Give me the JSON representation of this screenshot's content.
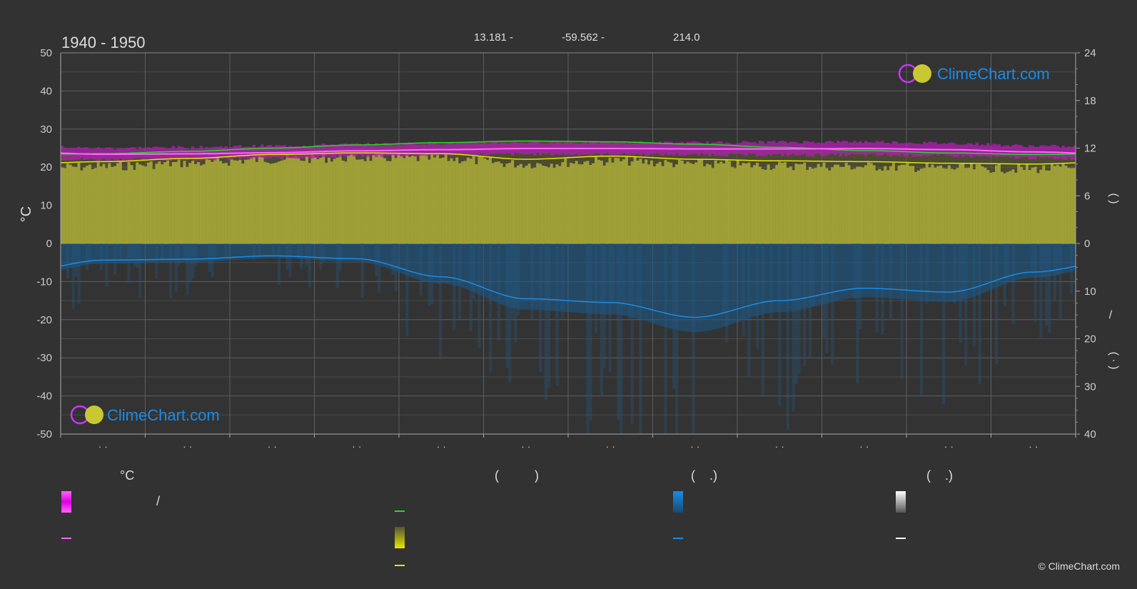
{
  "header": {
    "period": "1940 - 1950",
    "lat": "13.181 -",
    "lon": "-59.562 -",
    "elev": "214.0"
  },
  "branding": {
    "logo_text": "ClimeChart.com",
    "copyright": "© ClimeChart.com"
  },
  "legend": {
    "col1_head": "°C",
    "col1_item1_sep": "/",
    "col2_head": "(          )",
    "col3_head": "(    .)",
    "col4_head": "(    .)"
  },
  "colors": {
    "temp_band": "#ff00ff",
    "mean_temp": "#ff66ff",
    "daylight": "#22dd22",
    "sunshine": "#e6e600",
    "precip": "#1a8ce6",
    "snow": "#ffffff",
    "grid": "#777777",
    "bg": "#323232"
  },
  "chart_data": {
    "type": "line",
    "months": 12,
    "x_ticks": [
      "· ·",
      "· ·",
      "· ·",
      "· ·",
      "· ·",
      "· ·",
      "· ·",
      "· ·",
      "· ·",
      "· ·",
      "· ·",
      "· ·"
    ],
    "y_left": {
      "label": "°C",
      "ylim": [
        -50,
        50
      ],
      "ticks": [
        50,
        40,
        30,
        20,
        10,
        0,
        -10,
        -20,
        -30,
        -40,
        -50
      ]
    },
    "y_right_top": {
      "ylim": [
        0,
        24
      ],
      "ticks": [
        24,
        18,
        12,
        6,
        0
      ],
      "label": "(        )"
    },
    "y_right_bottom": {
      "ylim": [
        0,
        40
      ],
      "ticks": [
        0,
        10,
        20,
        30,
        40
      ],
      "label": "/",
      "label2": "(  ·  )"
    },
    "series": [
      {
        "key": "daylight",
        "axis": "hours",
        "values": [
          11.3,
          11.6,
          12.0,
          12.4,
          12.7,
          12.9,
          12.8,
          12.5,
          12.1,
          11.7,
          11.4,
          11.2
        ]
      },
      {
        "key": "sunshine",
        "axis": "hours",
        "values": [
          10.3,
          10.7,
          11.2,
          11.4,
          11.3,
          10.6,
          11.0,
          10.6,
          10.4,
          10.3,
          10.1,
          10.0
        ]
      },
      {
        "key": "mean_temp",
        "axis": "temp",
        "values": [
          23.4,
          23.5,
          23.8,
          24.3,
          24.6,
          24.9,
          24.9,
          24.8,
          24.8,
          24.9,
          24.6,
          24.0
        ]
      },
      {
        "key": "temp_max",
        "axis": "temp",
        "values": [
          25.0,
          25.2,
          25.6,
          26.0,
          26.3,
          26.5,
          26.5,
          26.4,
          26.6,
          26.7,
          26.3,
          25.6
        ]
      },
      {
        "key": "temp_min",
        "axis": "temp",
        "values": [
          22.0,
          22.1,
          22.4,
          22.9,
          23.2,
          23.4,
          23.4,
          23.3,
          23.2,
          23.2,
          23.0,
          22.4
        ]
      },
      {
        "key": "precip",
        "axis": "precip",
        "values": [
          3.5,
          3.3,
          2.6,
          3.2,
          7.0,
          11.6,
          12.4,
          15.5,
          12.0,
          9.4,
          10.2,
          6.0
        ]
      }
    ]
  }
}
